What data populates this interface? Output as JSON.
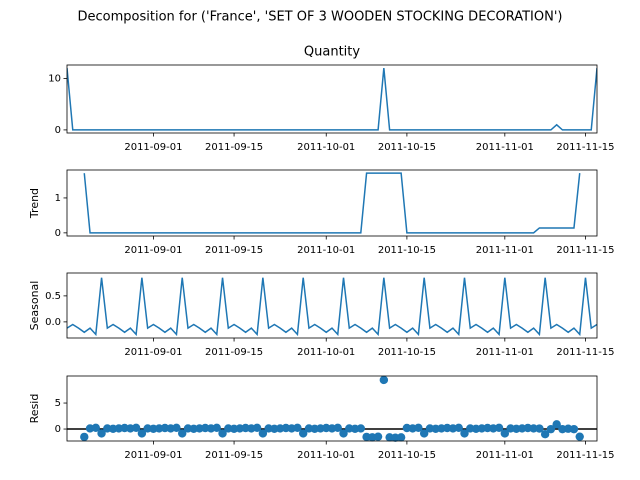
{
  "chart_data": {
    "type": "decomposition",
    "title": "Decomposition for ('France', 'SET OF 3 WOODEN STOCKING DECORATION')",
    "x": [
      "2011-08-17",
      "2011-08-18",
      "2011-08-19",
      "2011-08-20",
      "2011-08-21",
      "2011-08-22",
      "2011-08-23",
      "2011-08-24",
      "2011-08-25",
      "2011-08-26",
      "2011-08-27",
      "2011-08-28",
      "2011-08-29",
      "2011-08-30",
      "2011-08-31",
      "2011-09-01",
      "2011-09-02",
      "2011-09-03",
      "2011-09-04",
      "2011-09-05",
      "2011-09-06",
      "2011-09-07",
      "2011-09-08",
      "2011-09-09",
      "2011-09-10",
      "2011-09-11",
      "2011-09-12",
      "2011-09-13",
      "2011-09-14",
      "2011-09-15",
      "2011-09-16",
      "2011-09-17",
      "2011-09-18",
      "2011-09-19",
      "2011-09-20",
      "2011-09-21",
      "2011-09-22",
      "2011-09-23",
      "2011-09-24",
      "2011-09-25",
      "2011-09-26",
      "2011-09-27",
      "2011-09-28",
      "2011-09-29",
      "2011-09-30",
      "2011-10-01",
      "2011-10-02",
      "2011-10-03",
      "2011-10-04",
      "2011-10-05",
      "2011-10-06",
      "2011-10-07",
      "2011-10-08",
      "2011-10-09",
      "2011-10-10",
      "2011-10-11",
      "2011-10-12",
      "2011-10-13",
      "2011-10-14",
      "2011-10-15",
      "2011-10-16",
      "2011-10-17",
      "2011-10-18",
      "2011-10-19",
      "2011-10-20",
      "2011-10-21",
      "2011-10-22",
      "2011-10-23",
      "2011-10-24",
      "2011-10-25",
      "2011-10-26",
      "2011-10-27",
      "2011-10-28",
      "2011-10-29",
      "2011-10-30",
      "2011-10-31",
      "2011-11-01",
      "2011-11-02",
      "2011-11-03",
      "2011-11-04",
      "2011-11-05",
      "2011-11-06",
      "2011-11-07",
      "2011-11-08",
      "2011-11-09",
      "2011-11-10",
      "2011-11-11",
      "2011-11-12",
      "2011-11-13",
      "2011-11-14",
      "2011-11-15",
      "2011-11-16",
      "2011-11-17"
    ],
    "xlim": [
      "2011-08-17",
      "2011-11-17"
    ],
    "xticks": [
      "2011-09-01",
      "2011-09-15",
      "2011-10-01",
      "2011-10-15",
      "2011-11-01",
      "2011-11-15"
    ],
    "panels": [
      {
        "type": "line",
        "title": "Quantity",
        "color": "#1f77b4",
        "ylim": [
          -0.6,
          12.6
        ],
        "yticks": [
          0,
          10
        ],
        "values": [
          12,
          0,
          0,
          0,
          0,
          0,
          0,
          0,
          0,
          0,
          0,
          0,
          0,
          0,
          0,
          0,
          0,
          0,
          0,
          0,
          0,
          0,
          0,
          0,
          0,
          0,
          0,
          0,
          0,
          0,
          0,
          0,
          0,
          0,
          0,
          0,
          0,
          0,
          0,
          0,
          0,
          0,
          0,
          0,
          0,
          0,
          0,
          0,
          0,
          0,
          0,
          0,
          0,
          0,
          0,
          12,
          0,
          0,
          0,
          0,
          0,
          0,
          0,
          0,
          0,
          0,
          0,
          0,
          0,
          0,
          0,
          0,
          0,
          0,
          0,
          0,
          0,
          0,
          0,
          0,
          0,
          0,
          0,
          0,
          0,
          1,
          0,
          0,
          0,
          0,
          0,
          0,
          12
        ]
      },
      {
        "type": "line",
        "ylabel": "Trend",
        "color": "#1f77b4",
        "ylim": [
          -0.09,
          1.8
        ],
        "yticks": [
          0,
          1
        ],
        "values": [
          null,
          null,
          null,
          1.71,
          0,
          0,
          0,
          0,
          0,
          0,
          0,
          0,
          0,
          0,
          0,
          0,
          0,
          0,
          0,
          0,
          0,
          0,
          0,
          0,
          0,
          0,
          0,
          0,
          0,
          0,
          0,
          0,
          0,
          0,
          0,
          0,
          0,
          0,
          0,
          0,
          0,
          0,
          0,
          0,
          0,
          0,
          0,
          0,
          0,
          0,
          0,
          0,
          1.71,
          1.71,
          1.71,
          1.71,
          1.71,
          1.71,
          1.71,
          0,
          0,
          0,
          0,
          0,
          0,
          0,
          0,
          0,
          0,
          0,
          0,
          0,
          0,
          0,
          0,
          0,
          0,
          0,
          0,
          0,
          0,
          0,
          0.14,
          0.14,
          0.14,
          0.14,
          0.14,
          0.14,
          0.14,
          1.71,
          null,
          null,
          null
        ]
      },
      {
        "type": "line",
        "ylabel": "Seasonal",
        "color": "#1f77b4",
        "ylim": [
          -0.31,
          0.94
        ],
        "yticks": [
          {
            "value": 0,
            "label": "0.0"
          },
          {
            "value": 0.5,
            "label": "0.5"
          }
        ],
        "values": [
          -0.12,
          -0.05,
          -0.12,
          -0.2,
          -0.12,
          -0.24,
          0.85,
          -0.12,
          -0.05,
          -0.12,
          -0.2,
          -0.12,
          -0.24,
          0.85,
          -0.12,
          -0.05,
          -0.12,
          -0.2,
          -0.12,
          -0.24,
          0.85,
          -0.12,
          -0.05,
          -0.12,
          -0.2,
          -0.12,
          -0.24,
          0.85,
          -0.12,
          -0.05,
          -0.12,
          -0.2,
          -0.12,
          -0.24,
          0.85,
          -0.12,
          -0.05,
          -0.12,
          -0.2,
          -0.12,
          -0.24,
          0.85,
          -0.12,
          -0.05,
          -0.12,
          -0.2,
          -0.12,
          -0.24,
          0.85,
          -0.12,
          -0.05,
          -0.12,
          -0.2,
          -0.12,
          -0.24,
          0.85,
          -0.12,
          -0.05,
          -0.12,
          -0.2,
          -0.12,
          -0.24,
          0.85,
          -0.12,
          -0.05,
          -0.12,
          -0.2,
          -0.12,
          -0.24,
          0.85,
          -0.12,
          -0.05,
          -0.12,
          -0.2,
          -0.12,
          -0.24,
          0.85,
          -0.12,
          -0.05,
          -0.12,
          -0.2,
          -0.12,
          -0.24,
          0.85,
          -0.12,
          -0.05,
          -0.12,
          -0.2,
          -0.12,
          -0.24,
          0.85,
          -0.12,
          -0.05
        ]
      },
      {
        "type": "scatter",
        "ylabel": "Resid",
        "color": "#1f77b4",
        "ylim": [
          -2.3,
          10.2
        ],
        "yticks": [
          0,
          5
        ],
        "hline": 0,
        "values": [
          null,
          null,
          null,
          -1.51,
          0.12,
          0.24,
          -0.85,
          0.12,
          0.05,
          0.12,
          0.2,
          0.12,
          0.24,
          -0.85,
          0.12,
          0.05,
          0.12,
          0.2,
          0.12,
          0.24,
          -0.85,
          0.12,
          0.05,
          0.12,
          0.2,
          0.12,
          0.24,
          -0.85,
          0.12,
          0.05,
          0.12,
          0.2,
          0.12,
          0.24,
          -0.85,
          0.12,
          0.05,
          0.12,
          0.2,
          0.12,
          0.24,
          -0.85,
          0.12,
          0.05,
          0.12,
          0.2,
          0.12,
          0.24,
          -0.85,
          0.12,
          0.05,
          0.12,
          -1.51,
          -1.59,
          -1.47,
          9.44,
          -1.59,
          -1.66,
          -1.59,
          0.2,
          0.12,
          0.24,
          -0.85,
          0.12,
          0.05,
          0.12,
          0.2,
          0.12,
          0.24,
          -0.85,
          0.12,
          0.05,
          0.12,
          0.2,
          0.12,
          0.24,
          -0.85,
          0.12,
          0.05,
          0.12,
          0.2,
          0.12,
          0.1,
          -0.99,
          -0.02,
          0.91,
          -0.02,
          0.06,
          -0.02,
          -1.47,
          null,
          null,
          null
        ]
      }
    ]
  }
}
